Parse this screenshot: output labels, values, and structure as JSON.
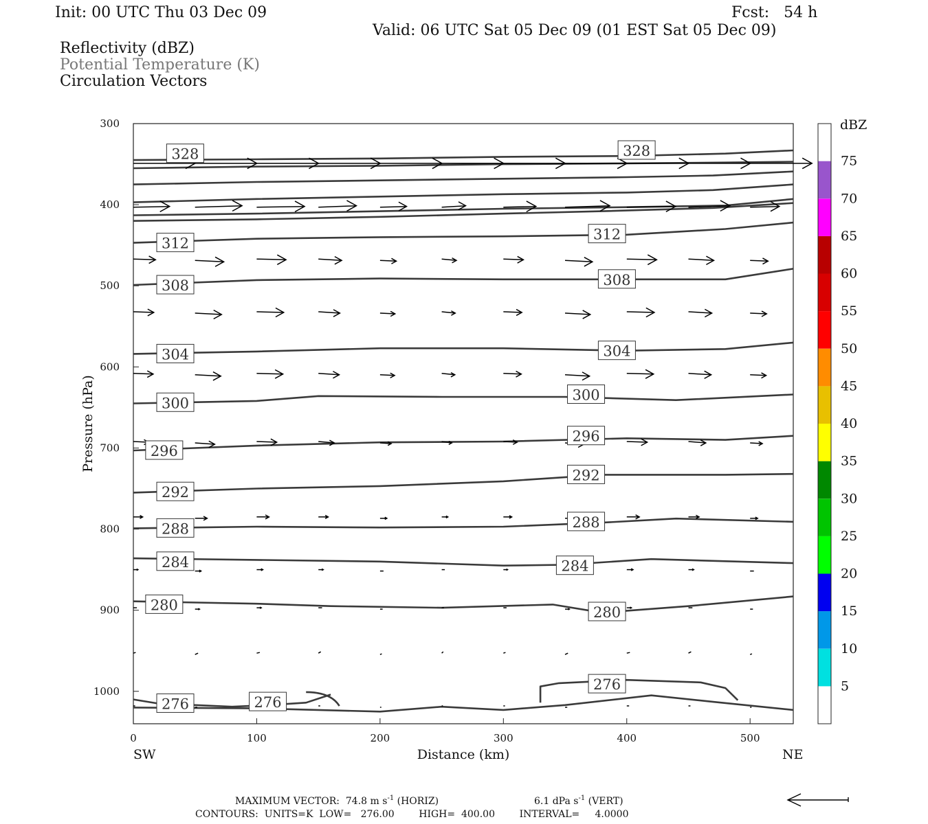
{
  "header": {
    "init": "Init: 00 UTC Thu 03 Dec 09",
    "fcst": "Fcst:   54 h",
    "valid": "Valid: 06 UTC Sat 05 Dec 09 (01 EST Sat 05 Dec 09)",
    "field1": "Reflectivity (dBZ)",
    "field2": "Potential Temperature (K)",
    "field3": "Circulation Vectors"
  },
  "footer": {
    "max_vector_label": "MAXIMUM VECTOR:",
    "horiz_value": "74.8 m s",
    "horiz_exp": "-1",
    "horiz_label": "(HORIZ)",
    "vert_value": "6.1 dPa s",
    "vert_exp": "-1",
    "vert_label": "(VERT)",
    "contours": "CONTOURS:  UNITS=K  LOW=   276.00        HIGH=  400.00        INTERVAL=     4.0000"
  },
  "colors": {
    "contour": "#3a3a3a",
    "vector": "#000000"
  },
  "chart_data": {
    "type": "cross-section",
    "xlabel": "Distance (km)",
    "ylabel": "Pressure (hPa)",
    "xlim": [
      0,
      535
    ],
    "ylim": [
      300,
      1040
    ],
    "y_inverted": true,
    "x_ticks": [
      0,
      100,
      200,
      300,
      400,
      500
    ],
    "y_ticks": [
      300,
      400,
      500,
      600,
      700,
      800,
      900,
      1000
    ],
    "x_end_labels": {
      "left": "SW",
      "right": "NE"
    },
    "colorbar": {
      "unit": "dBZ",
      "ticks": [
        5,
        10,
        15,
        20,
        25,
        30,
        35,
        40,
        45,
        50,
        55,
        60,
        65,
        70,
        75
      ],
      "colors": [
        "#ffffff",
        "#00e0e0",
        "#0098e8",
        "#0000f0",
        "#00ff00",
        "#00c400",
        "#008800",
        "#ffff00",
        "#e8c000",
        "#ff8c00",
        "#ff0000",
        "#d80000",
        "#b80000",
        "#ff00ff",
        "#9955cc",
        "#ffffff"
      ]
    },
    "contour_labels": [
      {
        "text": "328",
        "x": 42,
        "p": 337
      },
      {
        "text": "328",
        "x": 408,
        "p": 333
      },
      {
        "text": "312",
        "x": 34,
        "p": 447
      },
      {
        "text": "312",
        "x": 384,
        "p": 436
      },
      {
        "text": "308",
        "x": 34,
        "p": 499
      },
      {
        "text": "308",
        "x": 392,
        "p": 492
      },
      {
        "text": "304",
        "x": 34,
        "p": 584
      },
      {
        "text": "304",
        "x": 392,
        "p": 580
      },
      {
        "text": "300",
        "x": 34,
        "p": 644
      },
      {
        "text": "300",
        "x": 367,
        "p": 634
      },
      {
        "text": "296",
        "x": 25,
        "p": 703
      },
      {
        "text": "296",
        "x": 367,
        "p": 685
      },
      {
        "text": "292",
        "x": 34,
        "p": 754
      },
      {
        "text": "292",
        "x": 367,
        "p": 733
      },
      {
        "text": "288",
        "x": 34,
        "p": 799
      },
      {
        "text": "288",
        "x": 367,
        "p": 791
      },
      {
        "text": "284",
        "x": 34,
        "p": 840
      },
      {
        "text": "284",
        "x": 358,
        "p": 845
      },
      {
        "text": "280",
        "x": 25,
        "p": 893
      },
      {
        "text": "280",
        "x": 384,
        "p": 902
      },
      {
        "text": "276",
        "x": 34,
        "p": 1015
      },
      {
        "text": "276",
        "x": 109,
        "p": 1013
      },
      {
        "text": "276",
        "x": 384,
        "p": 991
      }
    ]
  }
}
